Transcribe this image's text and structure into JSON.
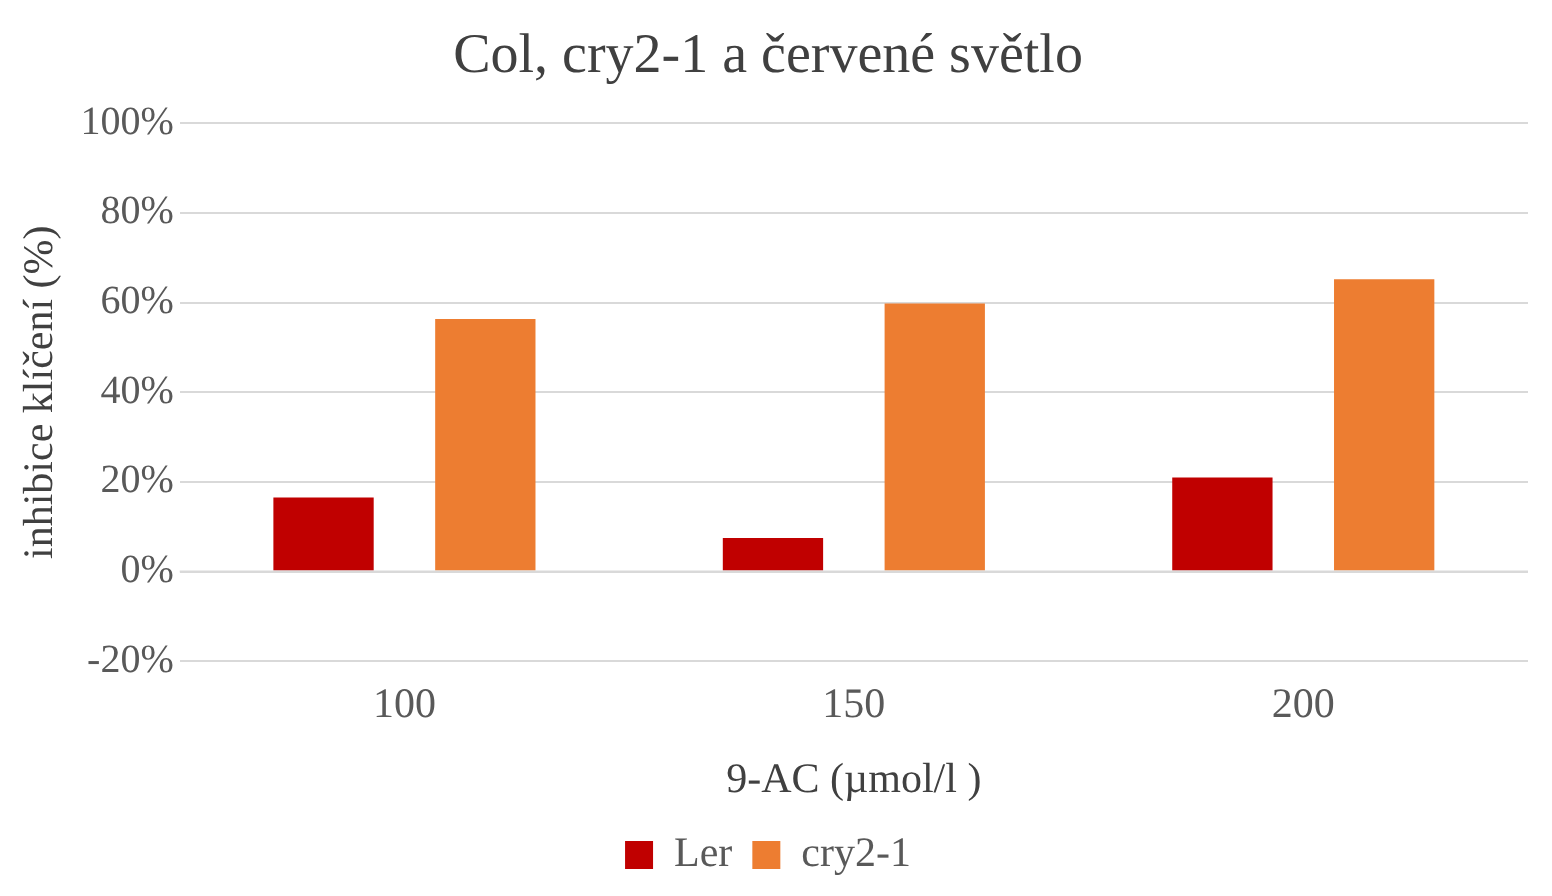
{
  "chart_data": {
    "type": "bar",
    "title": "Col, cry2-1 a červené světlo",
    "xlabel": "9-AC (µmol/l )",
    "ylabel": "inhibice klíčení (%)",
    "categories": [
      "100",
      "150",
      "200"
    ],
    "series": [
      {
        "name": "Ler",
        "color": "#c00000",
        "values": [
          16.5,
          7.5,
          21
        ]
      },
      {
        "name": "cry2-1",
        "color": "#ed7d31",
        "values": [
          56.3,
          59.8,
          65.2
        ]
      }
    ],
    "ylim": [
      -20,
      100
    ],
    "yticks": [
      {
        "value": -20,
        "label": "-20%"
      },
      {
        "value": 0,
        "label": "0%"
      },
      {
        "value": 20,
        "label": "20%"
      },
      {
        "value": 40,
        "label": "40%"
      },
      {
        "value": 60,
        "label": "60%"
      },
      {
        "value": 80,
        "label": "80%"
      },
      {
        "value": 100,
        "label": "100%"
      }
    ],
    "grid": "y",
    "legend": "bottom"
  }
}
